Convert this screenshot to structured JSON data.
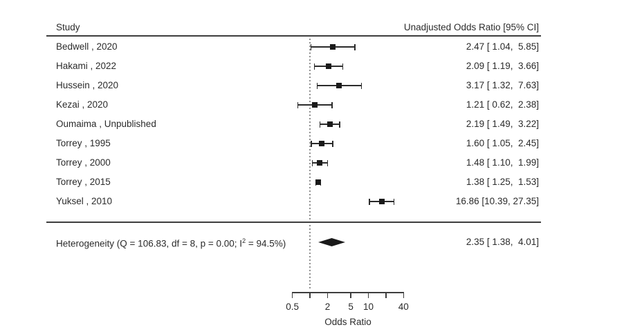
{
  "chart_data": {
    "type": "forest",
    "columns": {
      "study": "Study",
      "effect": "Unadjusted Odds Ratio [95% CI]"
    },
    "xlabel": "Odds Ratio",
    "x_scale": "log",
    "x_range": [
      0.5,
      40
    ],
    "x_ticks": [
      0.5,
      1,
      2,
      5,
      10,
      20,
      40
    ],
    "x_tick_labels": [
      "0.5",
      "",
      "2",
      "5",
      "10",
      "",
      "40"
    ],
    "reference_line": 1,
    "studies": [
      {
        "label": "Bedwell , 2020",
        "or": 2.47,
        "ci_low": 1.04,
        "ci_high": 5.85,
        "text": "2.47 [ 1.04,  5.85]"
      },
      {
        "label": "Hakami , 2022",
        "or": 2.09,
        "ci_low": 1.19,
        "ci_high": 3.66,
        "text": "2.09 [ 1.19,  3.66]"
      },
      {
        "label": "Hussein , 2020",
        "or": 3.17,
        "ci_low": 1.32,
        "ci_high": 7.63,
        "text": "3.17 [ 1.32,  7.63]"
      },
      {
        "label": "Kezai , 2020",
        "or": 1.21,
        "ci_low": 0.62,
        "ci_high": 2.38,
        "text": "1.21 [ 0.62,  2.38]"
      },
      {
        "label": "Oumaima , Unpublished",
        "or": 2.19,
        "ci_low": 1.49,
        "ci_high": 3.22,
        "text": "2.19 [ 1.49,  3.22]"
      },
      {
        "label": "Torrey , 1995",
        "or": 1.6,
        "ci_low": 1.05,
        "ci_high": 2.45,
        "text": "1.60 [ 1.05,  2.45]"
      },
      {
        "label": "Torrey , 2000",
        "or": 1.48,
        "ci_low": 1.1,
        "ci_high": 1.99,
        "text": "1.48 [ 1.10,  1.99]"
      },
      {
        "label": "Torrey , 2015",
        "or": 1.38,
        "ci_low": 1.25,
        "ci_high": 1.53,
        "text": "1.38 [ 1.25,  1.53]"
      },
      {
        "label": "Yuksel , 2010",
        "or": 16.86,
        "ci_low": 10.39,
        "ci_high": 27.35,
        "text": "16.86 [10.39, 27.35]"
      }
    ],
    "overall": {
      "label_pre": "Heterogeneity (Q = 106.83, df = 8, p = 0.00; I",
      "label_sup": "2",
      "label_post": " = 94.5%)",
      "or": 2.35,
      "ci_low": 1.38,
      "ci_high": 4.01,
      "text": "2.35 [ 1.38,  4.01]"
    }
  }
}
